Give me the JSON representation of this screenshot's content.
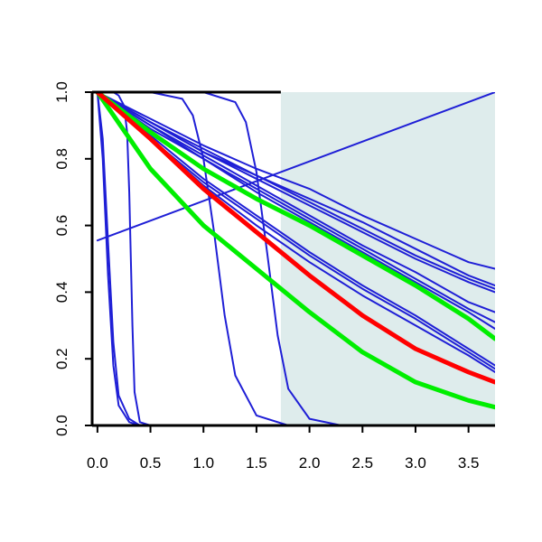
{
  "chart_data": {
    "type": "line",
    "title": "",
    "xlabel": "",
    "ylabel": "",
    "xlim": [
      -0.05,
      3.75
    ],
    "ylim": [
      0.0,
      1.0
    ],
    "x_ticks": [
      0.0,
      0.5,
      1.0,
      1.5,
      2.0,
      2.5,
      3.0,
      3.5
    ],
    "x_tick_labels": [
      "0.0",
      "0.5",
      "1.0",
      "1.5",
      "2.0",
      "2.5",
      "3.0",
      "3.5"
    ],
    "y_ticks": [
      0.0,
      0.2,
      0.4,
      0.6,
      0.8,
      1.0
    ],
    "y_tick_labels": [
      "0.0",
      "0.2",
      "0.4",
      "0.6",
      "0.8",
      "1.0"
    ],
    "grid": false,
    "legend": "none",
    "shaded_region": {
      "x_from": 1.73,
      "x_to": 3.75,
      "color": "#deecec"
    },
    "colors": {
      "blue": "#1f1fd6",
      "red": "#ff0000",
      "green": "#00ee00",
      "shade": "#deecec"
    },
    "series": [
      {
        "color": "#1f1fd6",
        "width": 2,
        "x": [
          0,
          0.5,
          1.0,
          1.5,
          2.0,
          2.5,
          3.0,
          3.5,
          3.75
        ],
        "values": [
          1.0,
          0.92,
          0.84,
          0.77,
          0.71,
          0.63,
          0.56,
          0.49,
          0.47
        ]
      },
      {
        "color": "#1f1fd6",
        "width": 2,
        "x": [
          0,
          0.5,
          1.0,
          1.5,
          2.0,
          2.5,
          3.0,
          3.5,
          3.75
        ],
        "values": [
          1.0,
          0.91,
          0.83,
          0.75,
          0.68,
          0.61,
          0.53,
          0.45,
          0.42
        ]
      },
      {
        "color": "#1f1fd6",
        "width": 2,
        "x": [
          0,
          0.5,
          1.0,
          1.5,
          2.0,
          2.5,
          3.0,
          3.5,
          3.75
        ],
        "values": [
          1.0,
          0.91,
          0.82,
          0.75,
          0.67,
          0.59,
          0.51,
          0.44,
          0.41
        ]
      },
      {
        "color": "#1f1fd6",
        "width": 2,
        "x": [
          0,
          0.5,
          1.0,
          1.5,
          2.0,
          2.5,
          3.0,
          3.5,
          3.75
        ],
        "values": [
          1.0,
          0.91,
          0.82,
          0.74,
          0.66,
          0.58,
          0.5,
          0.43,
          0.4
        ]
      },
      {
        "color": "#1f1fd6",
        "width": 2,
        "x": [
          0,
          0.5,
          1.0,
          1.5,
          2.0,
          2.5,
          3.0,
          3.5,
          3.75
        ],
        "values": [
          1.0,
          0.9,
          0.81,
          0.72,
          0.63,
          0.54,
          0.46,
          0.37,
          0.34
        ]
      },
      {
        "color": "#1f1fd6",
        "width": 2,
        "x": [
          0,
          0.5,
          1.0,
          1.5,
          2.0,
          2.5,
          3.0,
          3.5,
          3.75
        ],
        "values": [
          1.0,
          0.9,
          0.8,
          0.71,
          0.62,
          0.53,
          0.44,
          0.35,
          0.31
        ]
      },
      {
        "color": "#1f1fd6",
        "width": 2,
        "x": [
          0,
          0.5,
          1.0,
          1.5,
          2.0,
          2.5,
          3.0,
          3.5,
          3.75
        ],
        "values": [
          1.0,
          0.89,
          0.8,
          0.7,
          0.61,
          0.52,
          0.43,
          0.34,
          0.29
        ]
      },
      {
        "color": "#1f1fd6",
        "width": 2,
        "x": [
          0,
          0.5,
          1.0,
          1.5,
          2.0,
          2.5,
          3.0,
          3.5,
          3.75
        ],
        "values": [
          1.0,
          0.87,
          0.74,
          0.63,
          0.52,
          0.42,
          0.33,
          0.23,
          0.18
        ]
      },
      {
        "color": "#1f1fd6",
        "width": 2,
        "x": [
          0,
          0.5,
          1.0,
          1.5,
          2.0,
          2.5,
          3.0,
          3.5,
          3.75
        ],
        "values": [
          1.0,
          0.86,
          0.73,
          0.62,
          0.51,
          0.41,
          0.32,
          0.22,
          0.17
        ]
      },
      {
        "color": "#1f1fd6",
        "width": 2,
        "x": [
          0,
          0.5,
          1.0,
          1.5,
          2.0,
          2.5,
          3.0,
          3.5,
          3.75
        ],
        "values": [
          1.0,
          0.86,
          0.72,
          0.6,
          0.49,
          0.39,
          0.3,
          0.21,
          0.16
        ]
      },
      {
        "color": "#1f1fd6",
        "width": 2,
        "x": [
          0,
          0.05,
          0.1,
          0.15,
          0.2,
          0.3,
          0.4,
          0.5
        ],
        "values": [
          1.0,
          0.8,
          0.45,
          0.18,
          0.06,
          0.01,
          0.0,
          0.0
        ]
      },
      {
        "color": "#1f1fd6",
        "width": 2,
        "x": [
          0,
          0.05,
          0.1,
          0.15,
          0.2,
          0.3,
          0.4,
          0.5
        ],
        "values": [
          1.0,
          0.86,
          0.55,
          0.25,
          0.09,
          0.02,
          0.0,
          0.0
        ]
      },
      {
        "color": "#1f1fd6",
        "width": 2,
        "x": [
          0,
          0.15,
          0.2,
          0.25,
          0.28,
          0.3,
          0.33,
          0.35,
          0.4,
          0.5
        ],
        "values": [
          1.0,
          1.0,
          0.99,
          0.96,
          0.88,
          0.7,
          0.3,
          0.1,
          0.01,
          0.0
        ]
      },
      {
        "color": "#1f1fd6",
        "width": 2,
        "x": [
          0,
          0.5,
          0.8,
          0.9,
          1.0,
          1.1,
          1.2,
          1.3,
          1.5,
          1.8,
          2.0,
          2.5
        ],
        "values": [
          1.0,
          1.0,
          0.98,
          0.93,
          0.8,
          0.58,
          0.33,
          0.15,
          0.03,
          0.0,
          0.0,
          0.0
        ]
      },
      {
        "color": "#1f1fd6",
        "width": 2,
        "x": [
          0,
          1.0,
          1.3,
          1.4,
          1.5,
          1.6,
          1.7,
          1.8,
          2.0,
          2.3,
          2.5,
          3.0
        ],
        "values": [
          1.0,
          1.0,
          0.97,
          0.91,
          0.76,
          0.52,
          0.27,
          0.11,
          0.02,
          0.0,
          0.0,
          0.0
        ]
      },
      {
        "color": "#1f1fd6",
        "width": 2,
        "x": [
          0,
          3.75
        ],
        "values": [
          0.555,
          1.0
        ]
      },
      {
        "color": "#00ee00",
        "width": 5,
        "x": [
          0,
          0.5,
          1.0,
          1.5,
          2.0,
          2.5,
          3.0,
          3.5,
          3.75
        ],
        "values": [
          1.0,
          0.88,
          0.77,
          0.68,
          0.6,
          0.51,
          0.42,
          0.32,
          0.26
        ]
      },
      {
        "color": "#00ee00",
        "width": 5,
        "x": [
          0,
          0.5,
          1.0,
          1.5,
          2.0,
          2.5,
          3.0,
          3.5,
          3.75
        ],
        "values": [
          1.0,
          0.77,
          0.6,
          0.47,
          0.34,
          0.22,
          0.13,
          0.075,
          0.055
        ]
      },
      {
        "color": "#ff0000",
        "width": 5,
        "x": [
          0,
          0.5,
          1.0,
          1.5,
          2.0,
          2.5,
          3.0,
          3.5,
          3.75
        ],
        "values": [
          1.0,
          0.86,
          0.71,
          0.58,
          0.45,
          0.33,
          0.23,
          0.16,
          0.13
        ]
      }
    ]
  }
}
